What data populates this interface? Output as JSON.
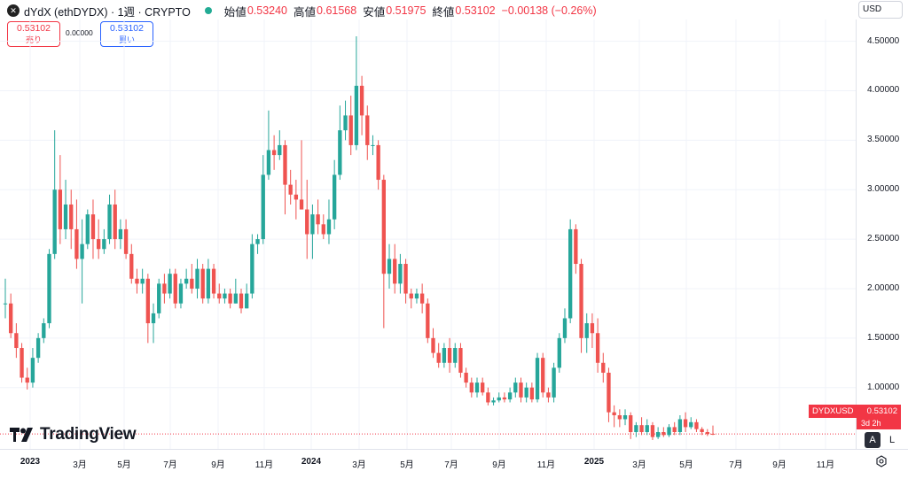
{
  "header": {
    "logo_glyph": "✕",
    "title": "dYdX (ethDYDX) · 1週 · CRYPTO",
    "ohlc": [
      {
        "label": "始値",
        "value": "0.53240"
      },
      {
        "label": "高値",
        "value": "0.61568"
      },
      {
        "label": "安値",
        "value": "0.51975"
      },
      {
        "label": "終値",
        "value": "0.53102"
      },
      {
        "label": "",
        "value": "−0.00138 (−0.26%)"
      }
    ]
  },
  "currency": "USD",
  "trade": {
    "sell_price": "0.53102",
    "sell_label": "売り",
    "spread": "0.00000",
    "buy_price": "0.53102",
    "buy_label": "買い"
  },
  "price_tag": {
    "symbol": "DYDXUSD",
    "price": "0.53102",
    "countdown": "3d 2h"
  },
  "brand": "TradingView",
  "buttons": {
    "auto": "A",
    "log": "L"
  },
  "colors": {
    "up": "#26a69a",
    "down": "#ef5350",
    "last_price": "#f23645"
  },
  "chart_data": {
    "type": "candlestick",
    "interval": "1週",
    "y_ticks": [
      "4.50000",
      "4.00000",
      "3.50000",
      "3.00000",
      "2.50000",
      "2.00000",
      "1.50000",
      "1.00000"
    ],
    "x_ticks": [
      "2023",
      "3月",
      "5月",
      "7月",
      "9月",
      "11月",
      "2024",
      "3月",
      "5月",
      "7月",
      "9月",
      "11月",
      "2025",
      "3月",
      "5月",
      "7月",
      "9月",
      "11月"
    ],
    "ylim": [
      0.38,
      4.72
    ],
    "last_price": 0.53102,
    "grid": true,
    "candles": [
      [
        1.85,
        1.85,
        2.1,
        1.7
      ],
      [
        1.85,
        1.55,
        1.95,
        1.5
      ],
      [
        1.55,
        1.4,
        1.65,
        1.3
      ],
      [
        1.4,
        1.1,
        1.45,
        1.05
      ],
      [
        1.1,
        1.05,
        1.2,
        0.98
      ],
      [
        1.05,
        1.3,
        1.4,
        1.0
      ],
      [
        1.3,
        1.5,
        1.55,
        1.25
      ],
      [
        1.5,
        1.65,
        1.7,
        1.45
      ],
      [
        1.65,
        2.35,
        2.4,
        1.6
      ],
      [
        2.35,
        3.0,
        3.6,
        2.3
      ],
      [
        3.0,
        2.6,
        3.35,
        2.45
      ],
      [
        2.6,
        2.85,
        3.1,
        2.5
      ],
      [
        2.85,
        2.6,
        3.0,
        2.4
      ],
      [
        2.6,
        2.3,
        2.9,
        2.2
      ],
      [
        2.3,
        2.45,
        2.7,
        1.85
      ],
      [
        2.45,
        2.75,
        2.8,
        2.4
      ],
      [
        2.75,
        2.5,
        2.9,
        2.3
      ],
      [
        2.5,
        2.4,
        2.7,
        2.3
      ],
      [
        2.4,
        2.5,
        2.6,
        2.35
      ],
      [
        2.5,
        2.85,
        2.95,
        2.45
      ],
      [
        2.85,
        2.5,
        3.0,
        2.4
      ],
      [
        2.5,
        2.6,
        2.7,
        2.4
      ],
      [
        2.6,
        2.35,
        2.7,
        2.3
      ],
      [
        2.35,
        2.1,
        2.45,
        2.05
      ],
      [
        2.1,
        2.05,
        2.2,
        1.95
      ],
      [
        2.05,
        2.1,
        2.2,
        1.95
      ],
      [
        2.1,
        1.65,
        2.15,
        1.45
      ],
      [
        1.65,
        1.75,
        1.85,
        1.45
      ],
      [
        1.75,
        2.05,
        2.1,
        1.7
      ],
      [
        2.05,
        1.95,
        2.15,
        1.85
      ],
      [
        1.95,
        2.15,
        2.2,
        1.9
      ],
      [
        2.15,
        1.85,
        2.2,
        1.8
      ],
      [
        1.85,
        2.05,
        2.1,
        1.8
      ],
      [
        2.05,
        2.1,
        2.2,
        2.0
      ],
      [
        2.1,
        2.0,
        2.25,
        1.95
      ],
      [
        2.0,
        2.2,
        2.3,
        1.9
      ],
      [
        2.2,
        1.9,
        2.25,
        1.85
      ],
      [
        1.9,
        2.2,
        2.3,
        1.85
      ],
      [
        2.2,
        1.95,
        2.25,
        1.9
      ],
      [
        1.95,
        1.9,
        2.05,
        1.85
      ],
      [
        1.9,
        1.95,
        2.0,
        1.85
      ],
      [
        1.95,
        1.85,
        2.0,
        1.8
      ],
      [
        1.85,
        1.95,
        2.1,
        1.85
      ],
      [
        1.95,
        1.8,
        2.0,
        1.75
      ],
      [
        1.8,
        1.95,
        2.05,
        1.8
      ],
      [
        1.95,
        2.45,
        2.55,
        1.9
      ],
      [
        2.45,
        2.5,
        2.55,
        2.35
      ],
      [
        2.5,
        3.15,
        3.35,
        2.45
      ],
      [
        3.15,
        3.4,
        3.8,
        3.1
      ],
      [
        3.4,
        3.35,
        3.55,
        3.2
      ],
      [
        3.35,
        3.45,
        3.6,
        3.3
      ],
      [
        3.45,
        3.05,
        3.5,
        2.75
      ],
      [
        3.05,
        2.95,
        3.2,
        2.85
      ],
      [
        2.95,
        2.9,
        3.1,
        2.7
      ],
      [
        2.9,
        2.8,
        3.5,
        2.8
      ],
      [
        2.8,
        2.55,
        3.1,
        2.3
      ],
      [
        2.55,
        2.75,
        2.85,
        2.3
      ],
      [
        2.75,
        2.65,
        2.9,
        2.55
      ],
      [
        2.65,
        2.55,
        2.75,
        2.5
      ],
      [
        2.55,
        2.7,
        2.9,
        2.45
      ],
      [
        2.7,
        3.15,
        3.3,
        2.6
      ],
      [
        3.15,
        3.6,
        3.85,
        3.1
      ],
      [
        3.6,
        3.75,
        3.9,
        3.5
      ],
      [
        3.75,
        3.45,
        3.95,
        3.35
      ],
      [
        3.45,
        4.05,
        4.55,
        3.4
      ],
      [
        4.05,
        3.75,
        4.15,
        3.55
      ],
      [
        3.75,
        3.45,
        3.85,
        3.3
      ],
      [
        3.45,
        3.45,
        3.55,
        3.35
      ],
      [
        3.45,
        3.1,
        3.5,
        3.0
      ],
      [
        3.1,
        2.15,
        3.15,
        1.6
      ],
      [
        2.15,
        2.3,
        2.45,
        2.0
      ],
      [
        2.3,
        2.05,
        2.45,
        1.95
      ],
      [
        2.05,
        2.25,
        2.35,
        1.95
      ],
      [
        2.25,
        1.95,
        2.3,
        1.85
      ],
      [
        1.95,
        1.9,
        2.0,
        1.8
      ],
      [
        1.9,
        1.95,
        2.0,
        1.85
      ],
      [
        1.95,
        1.85,
        2.05,
        1.75
      ],
      [
        1.85,
        1.5,
        1.9,
        1.45
      ],
      [
        1.5,
        1.35,
        1.6,
        1.3
      ],
      [
        1.35,
        1.25,
        1.45,
        1.2
      ],
      [
        1.25,
        1.4,
        1.45,
        1.2
      ],
      [
        1.4,
        1.25,
        1.5,
        1.15
      ],
      [
        1.25,
        1.4,
        1.45,
        1.2
      ],
      [
        1.4,
        1.15,
        1.45,
        1.1
      ],
      [
        1.15,
        1.05,
        1.2,
        1.0
      ],
      [
        1.05,
        0.95,
        1.1,
        0.9
      ],
      [
        0.95,
        1.05,
        1.1,
        0.9
      ],
      [
        1.05,
        0.95,
        1.1,
        0.92
      ],
      [
        0.95,
        0.85,
        1.0,
        0.82
      ],
      [
        0.85,
        0.87,
        0.9,
        0.82
      ],
      [
        0.87,
        0.9,
        0.95,
        0.85
      ],
      [
        0.9,
        0.88,
        0.95,
        0.85
      ],
      [
        0.88,
        0.95,
        1.0,
        0.85
      ],
      [
        0.95,
        1.05,
        1.1,
        0.9
      ],
      [
        1.05,
        0.9,
        1.1,
        0.85
      ],
      [
        0.9,
        1.0,
        1.05,
        0.85
      ],
      [
        1.0,
        0.88,
        1.05,
        0.85
      ],
      [
        0.88,
        1.3,
        1.35,
        0.85
      ],
      [
        1.3,
        0.95,
        1.35,
        0.9
      ],
      [
        0.95,
        0.9,
        1.0,
        0.85
      ],
      [
        0.9,
        1.2,
        1.25,
        0.85
      ],
      [
        1.2,
        1.5,
        1.55,
        1.15
      ],
      [
        1.5,
        1.7,
        1.8,
        1.45
      ],
      [
        1.7,
        2.6,
        2.7,
        1.65
      ],
      [
        2.6,
        2.25,
        2.65,
        2.15
      ],
      [
        2.25,
        1.5,
        2.3,
        1.35
      ],
      [
        1.5,
        1.65,
        1.75,
        1.35
      ],
      [
        1.65,
        1.55,
        1.75,
        1.4
      ],
      [
        1.55,
        1.25,
        1.7,
        1.15
      ],
      [
        1.25,
        1.15,
        1.35,
        1.05
      ],
      [
        1.15,
        0.75,
        1.2,
        0.65
      ],
      [
        0.75,
        0.72,
        0.82,
        0.6
      ],
      [
        0.72,
        0.68,
        0.78,
        0.6
      ],
      [
        0.68,
        0.72,
        0.78,
        0.62
      ],
      [
        0.72,
        0.55,
        0.75,
        0.48
      ],
      [
        0.55,
        0.62,
        0.65,
        0.5
      ],
      [
        0.62,
        0.55,
        0.7,
        0.52
      ],
      [
        0.55,
        0.62,
        0.68,
        0.52
      ],
      [
        0.62,
        0.5,
        0.65,
        0.47
      ],
      [
        0.5,
        0.55,
        0.6,
        0.48
      ],
      [
        0.55,
        0.52,
        0.6,
        0.5
      ],
      [
        0.52,
        0.6,
        0.63,
        0.5
      ],
      [
        0.6,
        0.55,
        0.65,
        0.52
      ],
      [
        0.55,
        0.68,
        0.72,
        0.52
      ],
      [
        0.68,
        0.6,
        0.75,
        0.55
      ],
      [
        0.6,
        0.65,
        0.7,
        0.58
      ],
      [
        0.65,
        0.58,
        0.68,
        0.55
      ],
      [
        0.58,
        0.55,
        0.6,
        0.52
      ],
      [
        0.55,
        0.53,
        0.58,
        0.51
      ],
      [
        0.5324,
        0.53102,
        0.61568,
        0.51975
      ]
    ]
  }
}
